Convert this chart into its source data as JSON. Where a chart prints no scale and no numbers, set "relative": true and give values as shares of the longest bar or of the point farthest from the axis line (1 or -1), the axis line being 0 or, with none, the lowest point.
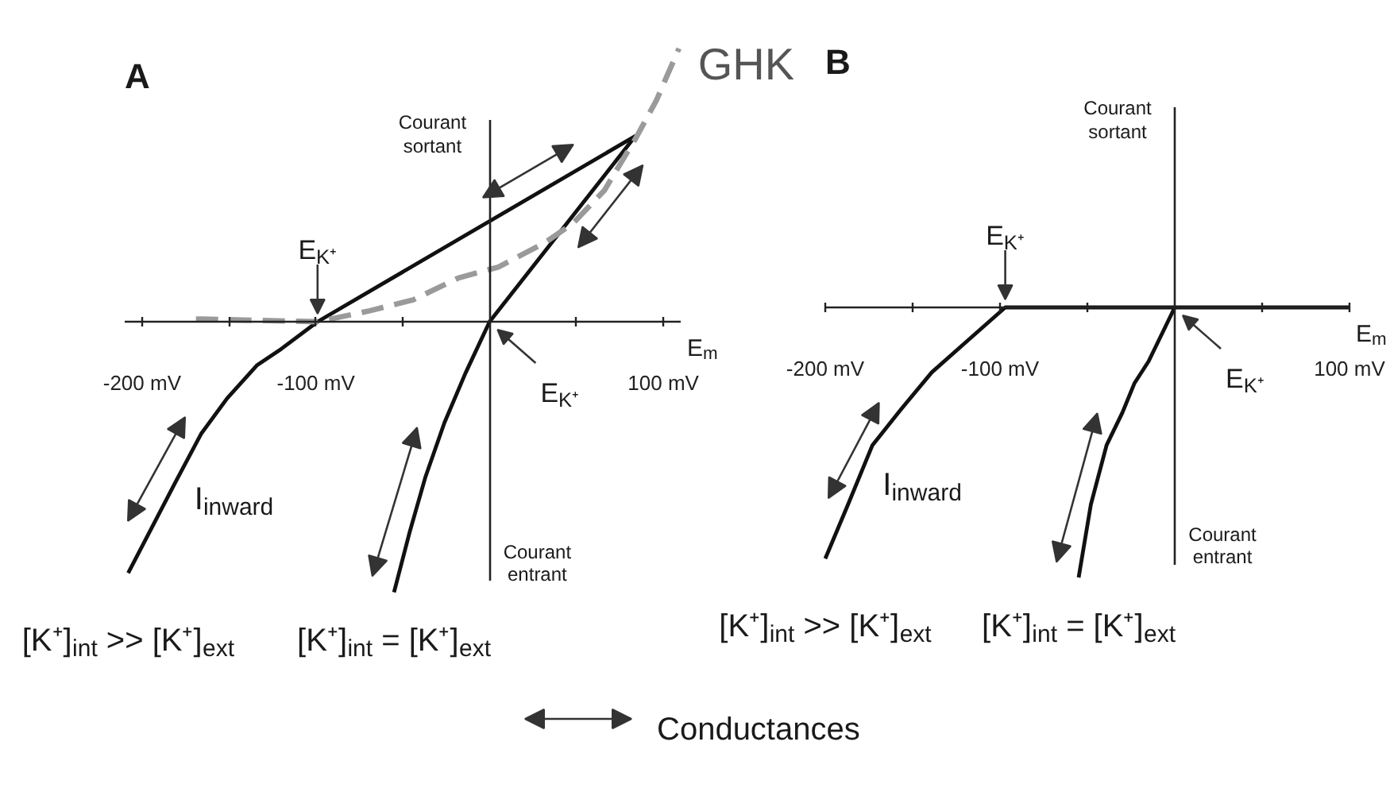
{
  "chart_data": [
    {
      "type": "line",
      "title": "A",
      "xlabel": "E$_{m}$",
      "ylabel": "Courant sortant",
      "relative": true,
      "xlim": [
        -210,
        110
      ],
      "xticks": [
        {
          "value": -200,
          "label": "-200 mV"
        },
        {
          "value": -150,
          "label": null
        },
        {
          "value": -100,
          "label": "-100 mV"
        },
        {
          "value": -50,
          "label": null
        },
        {
          "value": 50,
          "label": null
        },
        {
          "value": 100,
          "label": "100 mV"
        }
      ],
      "series": [
        {
          "name": "[K⁺]$_{int}$ >> [K⁺]$_{ext}$",
          "color": "#111111",
          "line_style": "solid",
          "x": [
            -208,
            -181,
            -166,
            -151,
            -134,
            -120,
            -99,
            84
          ],
          "values": [
            -0.92,
            -0.59,
            -0.41,
            -0.28,
            -0.16,
            -0.1,
            0,
            0.68
          ]
        },
        {
          "name": "[K⁺]$_{int}$ = [K⁺]$_{ext}$",
          "color": "#111111",
          "line_style": "solid",
          "x": [
            -55,
            -46,
            -37,
            -26,
            -14,
            0,
            84
          ],
          "values": [
            -0.99,
            -0.77,
            -0.57,
            -0.37,
            -0.19,
            0,
            0.68
          ]
        },
        {
          "name": "GHK",
          "color": "#9a9a9a",
          "line_style": "dashed",
          "x": [
            -169,
            -99,
            -69,
            -44,
            -18,
            5,
            32,
            48,
            66,
            84,
            96,
            109
          ],
          "values": [
            0.01,
            0,
            0.04,
            0.08,
            0.16,
            0.2,
            0.29,
            0.36,
            0.48,
            0.67,
            0.81,
            1
          ]
        }
      ],
      "annotations": [
        {
          "text": "E$_{K⁺}$",
          "x": -99,
          "y": 0
        },
        {
          "text": "E$_{K⁺}$",
          "x": 0,
          "y": 0
        },
        "I$_{inward}$",
        "Courant entrant",
        "Conductances"
      ]
    },
    {
      "type": "line",
      "title": "B",
      "xlabel": "E$_{m}$",
      "ylabel": "Courant sortant",
      "relative": true,
      "xlim": [
        -200,
        100
      ],
      "xticks": [
        {
          "value": -200,
          "label": "-200 mV"
        },
        {
          "value": -150,
          "label": null
        },
        {
          "value": -100,
          "label": "-100 mV"
        },
        {
          "value": -50,
          "label": null
        },
        {
          "value": 50,
          "label": null
        },
        {
          "value": 100,
          "label": "100 mV"
        }
      ],
      "series": [
        {
          "name": "[K⁺]$_{int}$ >> [K⁺]$_{ext}$",
          "color": "#111111",
          "line_style": "solid",
          "x": [
            -200,
            -187,
            -173,
            -157,
            -139,
            -118,
            -97,
            100
          ],
          "values": [
            -0.93,
            -0.73,
            -0.51,
            -0.38,
            -0.24,
            -0.12,
            0,
            0
          ]
        },
        {
          "name": "[K⁺]$_{int}$ = [K⁺]$_{ext}$",
          "color": "#111111",
          "line_style": "solid",
          "x": [
            -55,
            -48,
            -39,
            -30,
            -23,
            -15,
            0
          ],
          "values": [
            -1,
            -0.73,
            -0.51,
            -0.39,
            -0.28,
            -0.2,
            0
          ]
        }
      ],
      "annotations": [
        {
          "text": "E$_{K⁺}$",
          "x": -97,
          "y": 0
        },
        {
          "text": "E$_{K⁺}$",
          "x": 0,
          "y": 0
        },
        "I$_{inward}$",
        "Courant entrant"
      ]
    }
  ]
}
